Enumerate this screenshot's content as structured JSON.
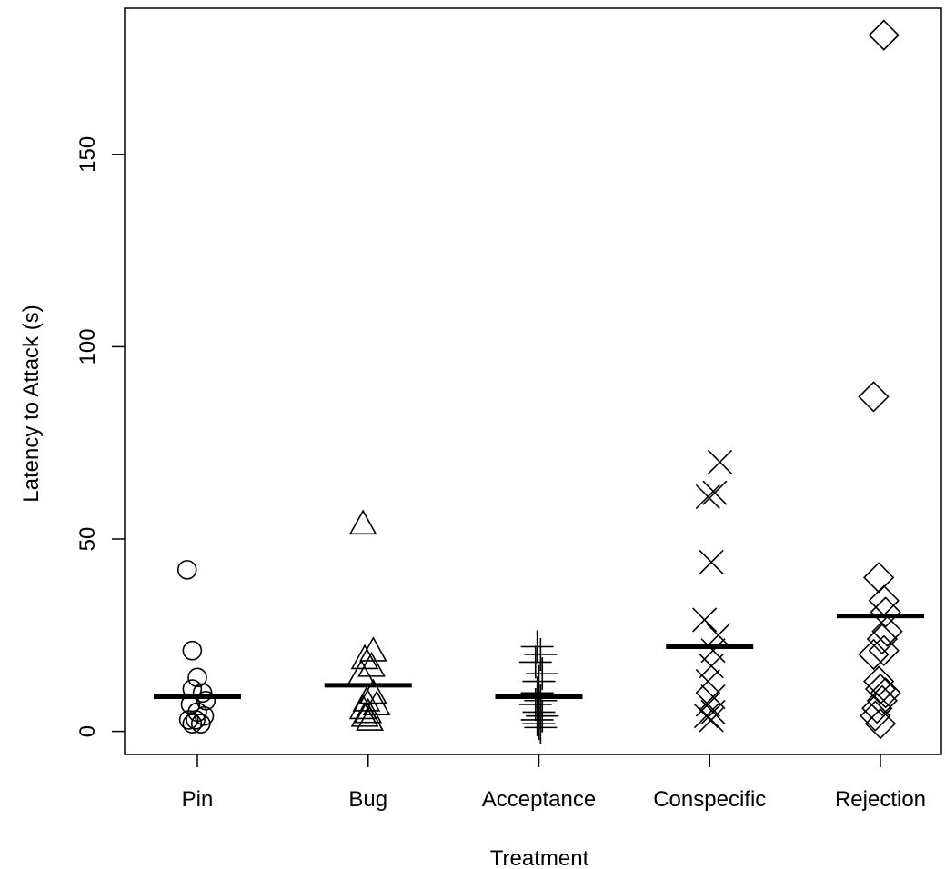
{
  "chart_data": {
    "type": "scatter",
    "title": "",
    "xlabel": "Treatment",
    "ylabel": "Latency to Attack  (s)",
    "categories": [
      "Pin",
      "Bug",
      "Acceptance",
      "Conspecific",
      "Rejection"
    ],
    "ylim": [
      -6,
      188
    ],
    "yticks": [
      0,
      50,
      100,
      150
    ],
    "grid": false,
    "legend": "none",
    "series": [
      {
        "category": "Pin",
        "marker": "circle",
        "mean": 9,
        "points": [
          {
            "x": 0.94,
            "y": 42
          },
          {
            "x": 0.97,
            "y": 21
          },
          {
            "x": 1.0,
            "y": 14
          },
          {
            "x": 0.97,
            "y": 11
          },
          {
            "x": 1.03,
            "y": 10
          },
          {
            "x": 1.05,
            "y": 8
          },
          {
            "x": 0.96,
            "y": 7
          },
          {
            "x": 1.0,
            "y": 5
          },
          {
            "x": 1.04,
            "y": 4
          },
          {
            "x": 0.95,
            "y": 3
          },
          {
            "x": 0.99,
            "y": 3
          },
          {
            "x": 1.02,
            "y": 2
          },
          {
            "x": 0.97,
            "y": 2
          }
        ]
      },
      {
        "category": "Bug",
        "marker": "triangle",
        "mean": 12,
        "points": [
          {
            "x": 1.97,
            "y": 54
          },
          {
            "x": 2.03,
            "y": 21
          },
          {
            "x": 1.98,
            "y": 19
          },
          {
            "x": 2.02,
            "y": 17
          },
          {
            "x": 1.96,
            "y": 15
          },
          {
            "x": 2.03,
            "y": 10
          },
          {
            "x": 1.99,
            "y": 8
          },
          {
            "x": 2.05,
            "y": 7
          },
          {
            "x": 1.97,
            "y": 6
          },
          {
            "x": 2.0,
            "y": 5
          },
          {
            "x": 1.98,
            "y": 4
          },
          {
            "x": 2.01,
            "y": 3
          }
        ]
      },
      {
        "category": "Acceptance",
        "marker": "plus",
        "mean": 9,
        "points": [
          {
            "x": 2.99,
            "y": 22
          },
          {
            "x": 3.01,
            "y": 20
          },
          {
            "x": 2.98,
            "y": 18
          },
          {
            "x": 3.02,
            "y": 15
          },
          {
            "x": 3.0,
            "y": 13
          },
          {
            "x": 2.99,
            "y": 10
          },
          {
            "x": 3.01,
            "y": 8
          },
          {
            "x": 2.98,
            "y": 7
          },
          {
            "x": 3.0,
            "y": 5
          },
          {
            "x": 3.02,
            "y": 4
          },
          {
            "x": 2.99,
            "y": 3
          },
          {
            "x": 3.0,
            "y": 2
          },
          {
            "x": 3.01,
            "y": 1
          }
        ]
      },
      {
        "category": "Conspecific",
        "marker": "cross",
        "mean": 22,
        "points": [
          {
            "x": 4.06,
            "y": 70
          },
          {
            "x": 4.03,
            "y": 62
          },
          {
            "x": 3.99,
            "y": 61
          },
          {
            "x": 4.01,
            "y": 44
          },
          {
            "x": 3.97,
            "y": 29
          },
          {
            "x": 4.05,
            "y": 25
          },
          {
            "x": 4.02,
            "y": 21
          },
          {
            "x": 4.01,
            "y": 17
          },
          {
            "x": 3.99,
            "y": 13
          },
          {
            "x": 4.02,
            "y": 9
          },
          {
            "x": 3.99,
            "y": 7
          },
          {
            "x": 4.02,
            "y": 5
          },
          {
            "x": 3.98,
            "y": 4
          },
          {
            "x": 4.01,
            "y": 3
          }
        ]
      },
      {
        "category": "Rejection",
        "marker": "diamond",
        "mean": 30,
        "points": [
          {
            "x": 5.02,
            "y": 181
          },
          {
            "x": 4.96,
            "y": 87
          },
          {
            "x": 4.99,
            "y": 40
          },
          {
            "x": 5.02,
            "y": 34
          },
          {
            "x": 5.03,
            "y": 31
          },
          {
            "x": 5.04,
            "y": 26
          },
          {
            "x": 5.01,
            "y": 24
          },
          {
            "x": 5.02,
            "y": 21
          },
          {
            "x": 4.96,
            "y": 20
          },
          {
            "x": 4.99,
            "y": 13
          },
          {
            "x": 5.0,
            "y": 11
          },
          {
            "x": 5.03,
            "y": 10
          },
          {
            "x": 5.01,
            "y": 8
          },
          {
            "x": 4.98,
            "y": 6
          },
          {
            "x": 4.97,
            "y": 4
          },
          {
            "x": 5.0,
            "y": 2
          }
        ]
      }
    ]
  }
}
